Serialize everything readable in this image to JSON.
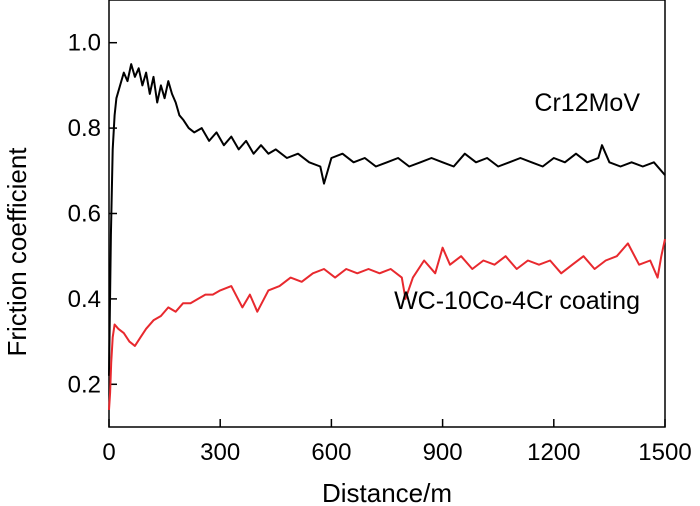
{
  "chart_data": {
    "type": "line",
    "title": "",
    "xlabel": "Distance/m",
    "ylabel": "Friction coefficient",
    "xlim": [
      0,
      1500
    ],
    "ylim": [
      0.1,
      1.1
    ],
    "xticks": [
      0,
      300,
      600,
      900,
      1200,
      1500
    ],
    "xtick_labels": [
      "0",
      "300",
      "600",
      "900",
      "1200",
      "1500"
    ],
    "yticks": [
      0.2,
      0.4,
      0.6,
      0.8,
      1.0
    ],
    "ytick_labels": [
      "0.2",
      "0.4",
      "0.6",
      "0.8",
      "1.0"
    ],
    "grid": false,
    "series": [
      {
        "name": "Cr12MoV",
        "label": "Cr12MoV",
        "color": "#000000",
        "x": [
          0,
          5,
          10,
          15,
          20,
          30,
          40,
          50,
          60,
          70,
          80,
          90,
          100,
          110,
          120,
          130,
          140,
          150,
          160,
          170,
          180,
          190,
          200,
          215,
          230,
          250,
          270,
          290,
          310,
          330,
          350,
          370,
          390,
          410,
          430,
          450,
          480,
          510,
          540,
          570,
          580,
          600,
          630,
          660,
          690,
          720,
          750,
          780,
          810,
          840,
          870,
          900,
          930,
          960,
          990,
          1020,
          1050,
          1080,
          1110,
          1140,
          1170,
          1200,
          1230,
          1260,
          1290,
          1320,
          1330,
          1350,
          1380,
          1410,
          1440,
          1470,
          1500
        ],
        "y": [
          0.22,
          0.55,
          0.75,
          0.83,
          0.87,
          0.9,
          0.93,
          0.91,
          0.95,
          0.92,
          0.94,
          0.9,
          0.93,
          0.88,
          0.92,
          0.86,
          0.9,
          0.87,
          0.91,
          0.88,
          0.86,
          0.83,
          0.82,
          0.8,
          0.79,
          0.8,
          0.77,
          0.79,
          0.76,
          0.78,
          0.75,
          0.77,
          0.74,
          0.76,
          0.74,
          0.75,
          0.73,
          0.74,
          0.72,
          0.71,
          0.67,
          0.73,
          0.74,
          0.72,
          0.73,
          0.71,
          0.72,
          0.73,
          0.71,
          0.72,
          0.73,
          0.72,
          0.71,
          0.74,
          0.72,
          0.73,
          0.71,
          0.72,
          0.73,
          0.72,
          0.71,
          0.73,
          0.72,
          0.74,
          0.72,
          0.73,
          0.76,
          0.72,
          0.71,
          0.72,
          0.71,
          0.72,
          0.69
        ]
      },
      {
        "name": "WC-10Co-4Cr  coating",
        "label": "WC-10Co-4Cr  coating",
        "color": "#e8292e",
        "x": [
          0,
          3,
          6,
          10,
          15,
          25,
          40,
          55,
          70,
          85,
          100,
          120,
          140,
          160,
          180,
          200,
          220,
          240,
          260,
          280,
          300,
          330,
          360,
          380,
          400,
          430,
          460,
          490,
          520,
          550,
          580,
          610,
          640,
          670,
          700,
          730,
          760,
          790,
          800,
          820,
          850,
          880,
          900,
          920,
          950,
          980,
          1010,
          1040,
          1070,
          1100,
          1130,
          1160,
          1190,
          1220,
          1250,
          1280,
          1310,
          1340,
          1370,
          1400,
          1430,
          1460,
          1480,
          1490,
          1500
        ],
        "y": [
          0.14,
          0.18,
          0.25,
          0.31,
          0.34,
          0.33,
          0.32,
          0.3,
          0.29,
          0.31,
          0.33,
          0.35,
          0.36,
          0.38,
          0.37,
          0.39,
          0.39,
          0.4,
          0.41,
          0.41,
          0.42,
          0.43,
          0.38,
          0.41,
          0.37,
          0.42,
          0.43,
          0.45,
          0.44,
          0.46,
          0.47,
          0.45,
          0.47,
          0.46,
          0.47,
          0.46,
          0.47,
          0.45,
          0.4,
          0.45,
          0.49,
          0.46,
          0.52,
          0.48,
          0.5,
          0.47,
          0.49,
          0.48,
          0.5,
          0.47,
          0.49,
          0.48,
          0.49,
          0.46,
          0.48,
          0.5,
          0.47,
          0.49,
          0.5,
          0.53,
          0.48,
          0.49,
          0.45,
          0.5,
          0.54
        ]
      }
    ]
  }
}
